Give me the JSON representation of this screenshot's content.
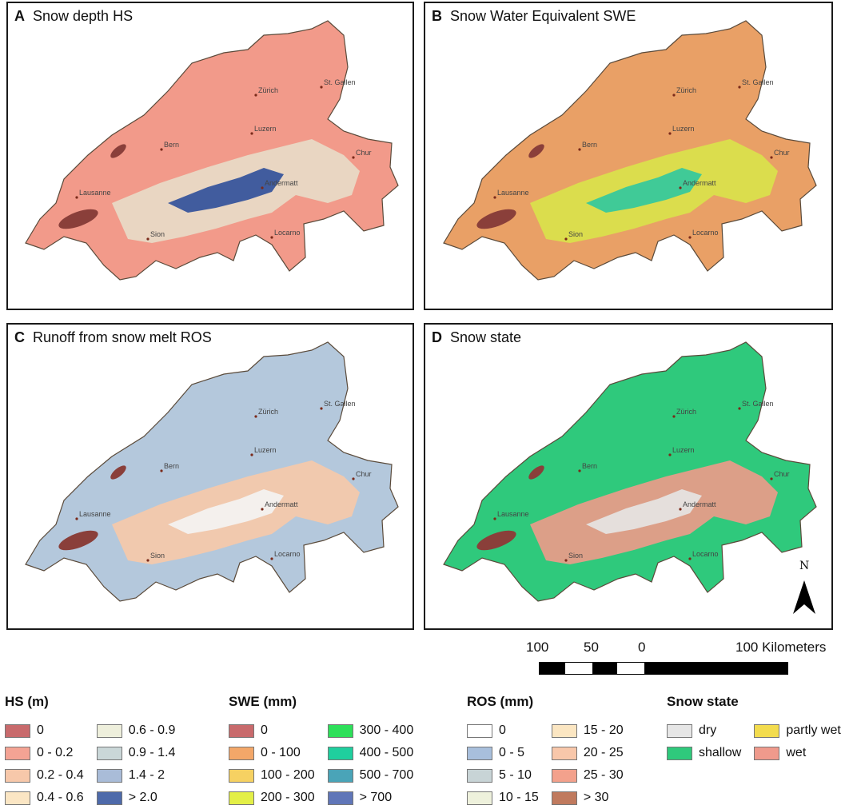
{
  "panels": {
    "a": {
      "letter": "A",
      "title": "Snow depth HS",
      "fill": "#f29a8a",
      "mid": "#e8ddc8",
      "high": "#2f4f9a"
    },
    "b": {
      "letter": "B",
      "title": "Snow Water Equivalent SWE",
      "fill": "#e9a066",
      "mid": "#d9e34a",
      "high": "#2fc8a0"
    },
    "c": {
      "letter": "C",
      "title": "Runoff from snow melt ROS",
      "fill": "#b4c8dc",
      "mid": "#f7c9a8",
      "high": "#f4f4f4"
    },
    "d": {
      "letter": "D",
      "title": "Snow state",
      "fill": "#2fc97c",
      "mid": "#f09a8a",
      "high": "#e6e6e6"
    }
  },
  "cities": [
    "Zürich",
    "St. Gallen",
    "Luzern",
    "Bern",
    "Chur",
    "Andermatt",
    "Lausanne",
    "Sion",
    "Locarno"
  ],
  "north_label": "N",
  "scale": {
    "labels": [
      "100",
      "50",
      "0",
      "100 Kilometers"
    ]
  },
  "legends": {
    "hs": {
      "title": "HS (m)",
      "items": [
        {
          "label": "0",
          "color": "#c86a6c"
        },
        {
          "label": "0 - 0.2",
          "color": "#f4a394"
        },
        {
          "label": "0.2 - 0.4",
          "color": "#f7c8aa"
        },
        {
          "label": "0.4 - 0.6",
          "color": "#fbe6c4"
        },
        {
          "label": "0.6 - 0.9",
          "color": "#eeefdc"
        },
        {
          "label": "0.9 - 1.4",
          "color": "#cad7d8"
        },
        {
          "label": "1.4 - 2",
          "color": "#a9bcd8"
        },
        {
          "label": "> 2.0",
          "color": "#4e6aaa"
        }
      ]
    },
    "swe": {
      "title": "SWE (mm)",
      "items": [
        {
          "label": "0",
          "color": "#c86a6c"
        },
        {
          "label": "0 - 100",
          "color": "#f3a769"
        },
        {
          "label": "100 - 200",
          "color": "#f6d162"
        },
        {
          "label": "200 - 300",
          "color": "#e3ef47"
        },
        {
          "label": "300 - 400",
          "color": "#2ee05a"
        },
        {
          "label": "400 - 500",
          "color": "#1fcf9e"
        },
        {
          "label": "500 - 700",
          "color": "#4aa4b8"
        },
        {
          "label": "> 700",
          "color": "#6076b8"
        }
      ]
    },
    "ros": {
      "title": "ROS (mm)",
      "items": [
        {
          "label": "0",
          "color": "#ffffff"
        },
        {
          "label": "0 - 5",
          "color": "#a8bfdc"
        },
        {
          "label": "5 - 10",
          "color": "#c8d4d6"
        },
        {
          "label": "10 - 15",
          "color": "#eef1dc"
        },
        {
          "label": "15 - 20",
          "color": "#fbe6c2"
        },
        {
          "label": "20 - 25",
          "color": "#f8c7aa"
        },
        {
          "label": "25 - 30",
          "color": "#f3a18c"
        },
        {
          "label": "> 30",
          "color": "#c07a5e"
        }
      ]
    },
    "state": {
      "title": "Snow state",
      "items": [
        {
          "label": "dry",
          "color": "#e6e6e6"
        },
        {
          "label": "shallow",
          "color": "#2fc97c"
        },
        {
          "label": "partly wet",
          "color": "#f3dc4e"
        },
        {
          "label": "wet",
          "color": "#ef9a8c"
        }
      ]
    }
  }
}
